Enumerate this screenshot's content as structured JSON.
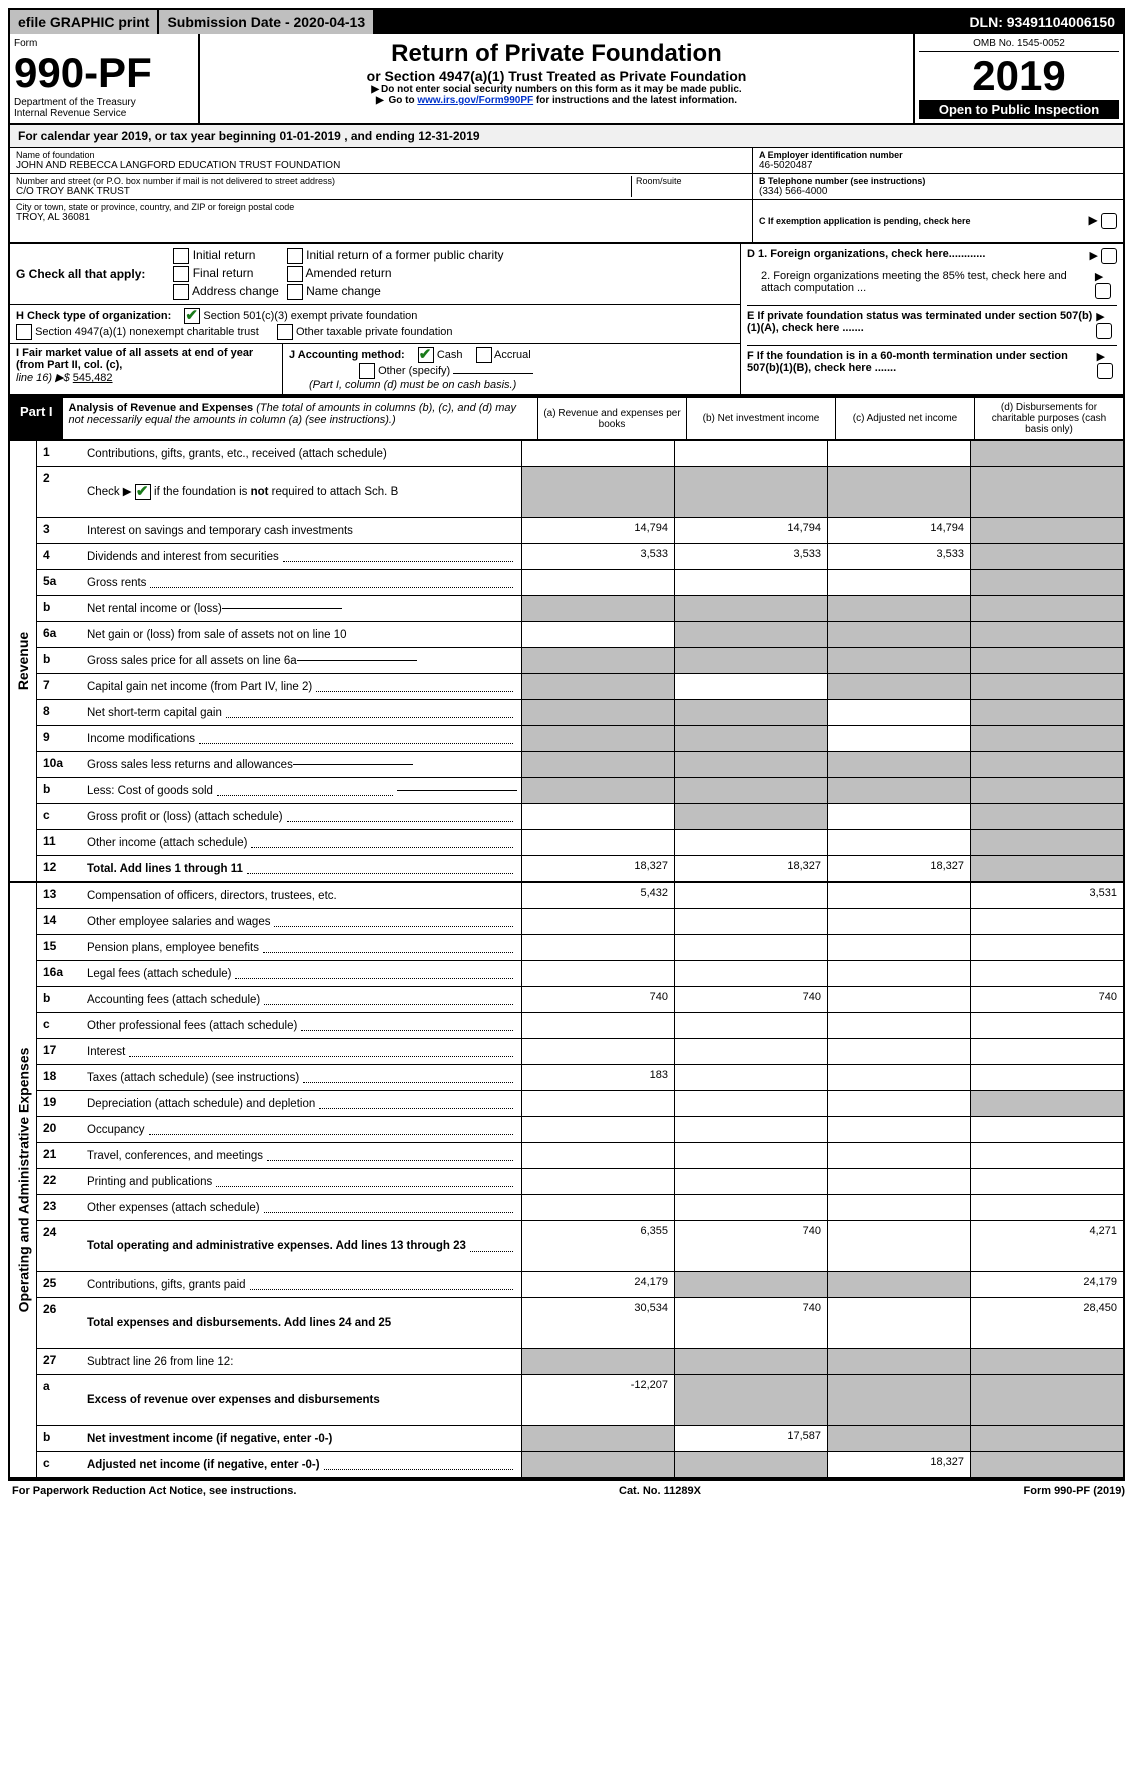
{
  "top": {
    "efile": "efile GRAPHIC print",
    "submission": "Submission Date - 2020-04-13",
    "dln": "DLN: 93491104006150"
  },
  "header": {
    "form_word": "Form",
    "form_no": "990-PF",
    "dept1": "Department of the Treasury",
    "dept2": "Internal Revenue Service",
    "title": "Return of Private Foundation",
    "subtitle": "or Section 4947(a)(1) Trust Treated as Private Foundation",
    "note1": "Do not enter social security numbers on this form as it may be made public.",
    "note2_pre": "Go to ",
    "note2_link": "www.irs.gov/Form990PF",
    "note2_post": " for instructions and the latest information.",
    "omb": "OMB No. 1545-0052",
    "year": "2019",
    "open": "Open to Public Inspection"
  },
  "cal": {
    "text_pre": "For calendar year 2019, or tax year beginning ",
    "begin": "01-01-2019",
    "mid": " , and ending ",
    "end": "12-31-2019"
  },
  "info": {
    "name_label": "Name of foundation",
    "name_val": "JOHN AND REBECCA LANGFORD EDUCATION TRUST FOUNDATION",
    "addr_label": "Number and street (or P.O. box number if mail is not delivered to street address)",
    "addr_val": "C/O TROY BANK TRUST",
    "room_label": "Room/suite",
    "city_label": "City or town, state or province, country, and ZIP or foreign postal code",
    "city_val": "TROY, AL 36081",
    "a_label": "A Employer identification number",
    "a_val": "46-5020487",
    "b_label": "B Telephone number (see instructions)",
    "b_val": "(334) 566-4000",
    "c_label": "C If exemption application is pending, check here",
    "d1": "D 1. Foreign organizations, check here............",
    "d2": "2. Foreign organizations meeting the 85% test, check here and attach computation ...",
    "e": "E  If private foundation status was terminated under section 507(b)(1)(A), check here .......",
    "f": "F  If the foundation is in a 60-month termination under section 507(b)(1)(B), check here ......."
  },
  "g": {
    "label": "G Check all that apply:",
    "initial": "Initial return",
    "initial_former": "Initial return of a former public charity",
    "final": "Final return",
    "amended": "Amended return",
    "addr_change": "Address change",
    "name_change": "Name change"
  },
  "h": {
    "label": "H Check type of organization:",
    "o1": "Section 501(c)(3) exempt private foundation",
    "o2": "Section 4947(a)(1) nonexempt charitable trust",
    "o3": "Other taxable private foundation"
  },
  "i": {
    "label": "I Fair market value of all assets at end of year (from Part II, col. (c),",
    "line16": "line 16) ▶$ ",
    "val": "545,482"
  },
  "j": {
    "label": "J Accounting method:",
    "cash": "Cash",
    "accrual": "Accrual",
    "other": "Other (specify)",
    "note": "(Part I, column (d) must be on cash basis.)"
  },
  "part1": {
    "label": "Part I",
    "title": "Analysis of Revenue and Expenses",
    "title_note": " (The total of amounts in columns (b), (c), and (d) may not necessarily equal the amounts in column (a) (see instructions).)",
    "colA": "(a)  Revenue and expenses per books",
    "colB": "(b)  Net investment income",
    "colC": "(c)  Adjusted net income",
    "colD": "(d)  Disbursements for charitable purposes (cash basis only)"
  },
  "sides": {
    "revenue": "Revenue",
    "oae": "Operating and Administrative Expenses"
  },
  "rows": [
    {
      "no": "1",
      "desc": "Contributions, gifts, grants, etc., received (attach schedule)",
      "dots": 0,
      "a": "",
      "b": "",
      "c": "",
      "d": "",
      "shadeD": 1
    },
    {
      "no": "2",
      "desc": "Check ▶ ✔ if the foundation is not required to attach Sch. B",
      "dots": 0,
      "a": "",
      "b": "",
      "c": "",
      "d": "",
      "shadeA": 1,
      "shadeB": 1,
      "shadeC": 1,
      "shadeD": 1,
      "tall": 1,
      "checkbox": 1
    },
    {
      "no": "3",
      "desc": "Interest on savings and temporary cash investments",
      "dots": 0,
      "a": "14,794",
      "b": "14,794",
      "c": "14,794",
      "d": "",
      "shadeD": 1
    },
    {
      "no": "4",
      "desc": "Dividends and interest from securities",
      "dots": 1,
      "a": "3,533",
      "b": "3,533",
      "c": "3,533",
      "d": "",
      "shadeD": 1
    },
    {
      "no": "5a",
      "desc": "Gross rents",
      "dots": 1,
      "a": "",
      "b": "",
      "c": "",
      "d": "",
      "shadeD": 1
    },
    {
      "no": "b",
      "desc": "Net rental income or (loss)",
      "dots": 0,
      "inline": 1,
      "a": "",
      "b": "",
      "c": "",
      "d": "",
      "shadeA": 1,
      "shadeB": 1,
      "shadeC": 1,
      "shadeD": 1
    },
    {
      "no": "6a",
      "desc": "Net gain or (loss) from sale of assets not on line 10",
      "dots": 0,
      "a": "",
      "b": "",
      "c": "",
      "d": "",
      "shadeB": 1,
      "shadeC": 1,
      "shadeD": 1
    },
    {
      "no": "b",
      "desc": "Gross sales price for all assets on line 6a",
      "dots": 0,
      "inline": 1,
      "a": "",
      "b": "",
      "c": "",
      "d": "",
      "shadeA": 1,
      "shadeB": 1,
      "shadeC": 1,
      "shadeD": 1
    },
    {
      "no": "7",
      "desc": "Capital gain net income (from Part IV, line 2)",
      "dots": 1,
      "a": "",
      "b": "",
      "c": "",
      "d": "",
      "shadeA": 1,
      "shadeC": 1,
      "shadeD": 1
    },
    {
      "no": "8",
      "desc": "Net short-term capital gain",
      "dots": 1,
      "a": "",
      "b": "",
      "c": "",
      "d": "",
      "shadeA": 1,
      "shadeB": 1,
      "shadeD": 1
    },
    {
      "no": "9",
      "desc": "Income modifications",
      "dots": 1,
      "a": "",
      "b": "",
      "c": "",
      "d": "",
      "shadeA": 1,
      "shadeB": 1,
      "shadeD": 1
    },
    {
      "no": "10a",
      "desc": "Gross sales less returns and allowances",
      "dots": 0,
      "inline": 1,
      "a": "",
      "b": "",
      "c": "",
      "d": "",
      "shadeA": 1,
      "shadeB": 1,
      "shadeC": 1,
      "shadeD": 1
    },
    {
      "no": "b",
      "desc": "Less: Cost of goods sold",
      "dots": 1,
      "inline": 1,
      "a": "",
      "b": "",
      "c": "",
      "d": "",
      "shadeA": 1,
      "shadeB": 1,
      "shadeC": 1,
      "shadeD": 1
    },
    {
      "no": "c",
      "desc": "Gross profit or (loss) (attach schedule)",
      "dots": 1,
      "a": "",
      "b": "",
      "c": "",
      "d": "",
      "shadeB": 1,
      "shadeD": 1
    },
    {
      "no": "11",
      "desc": "Other income (attach schedule)",
      "dots": 1,
      "a": "",
      "b": "",
      "c": "",
      "d": "",
      "shadeD": 1
    },
    {
      "no": "12",
      "desc": "Total. Add lines 1 through 11",
      "dots": 1,
      "bold": 1,
      "a": "18,327",
      "b": "18,327",
      "c": "18,327",
      "d": "",
      "shadeD": 1
    }
  ],
  "rows2": [
    {
      "no": "13",
      "desc": "Compensation of officers, directors, trustees, etc.",
      "dots": 0,
      "a": "5,432",
      "b": "",
      "c": "",
      "d": "3,531"
    },
    {
      "no": "14",
      "desc": "Other employee salaries and wages",
      "dots": 1,
      "a": "",
      "b": "",
      "c": "",
      "d": ""
    },
    {
      "no": "15",
      "desc": "Pension plans, employee benefits",
      "dots": 1,
      "a": "",
      "b": "",
      "c": "",
      "d": ""
    },
    {
      "no": "16a",
      "desc": "Legal fees (attach schedule)",
      "dots": 1,
      "a": "",
      "b": "",
      "c": "",
      "d": ""
    },
    {
      "no": "b",
      "desc": "Accounting fees (attach schedule)",
      "dots": 1,
      "a": "740",
      "b": "740",
      "c": "",
      "d": "740"
    },
    {
      "no": "c",
      "desc": "Other professional fees (attach schedule)",
      "dots": 1,
      "a": "",
      "b": "",
      "c": "",
      "d": ""
    },
    {
      "no": "17",
      "desc": "Interest",
      "dots": 1,
      "a": "",
      "b": "",
      "c": "",
      "d": ""
    },
    {
      "no": "18",
      "desc": "Taxes (attach schedule) (see instructions)",
      "dots": 1,
      "a": "183",
      "b": "",
      "c": "",
      "d": ""
    },
    {
      "no": "19",
      "desc": "Depreciation (attach schedule) and depletion",
      "dots": 1,
      "a": "",
      "b": "",
      "c": "",
      "d": "",
      "shadeD": 1
    },
    {
      "no": "20",
      "desc": "Occupancy",
      "dots": 1,
      "a": "",
      "b": "",
      "c": "",
      "d": ""
    },
    {
      "no": "21",
      "desc": "Travel, conferences, and meetings",
      "dots": 1,
      "a": "",
      "b": "",
      "c": "",
      "d": ""
    },
    {
      "no": "22",
      "desc": "Printing and publications",
      "dots": 1,
      "a": "",
      "b": "",
      "c": "",
      "d": ""
    },
    {
      "no": "23",
      "desc": "Other expenses (attach schedule)",
      "dots": 1,
      "a": "",
      "b": "",
      "c": "",
      "d": ""
    },
    {
      "no": "24",
      "desc": "Total operating and administrative expenses. Add lines 13 through 23",
      "dots": 1,
      "bold": 1,
      "tall": 1,
      "a": "6,355",
      "b": "740",
      "c": "",
      "d": "4,271"
    },
    {
      "no": "25",
      "desc": "Contributions, gifts, grants paid",
      "dots": 1,
      "a": "24,179",
      "b": "",
      "c": "",
      "d": "24,179",
      "shadeB": 1,
      "shadeC": 1
    },
    {
      "no": "26",
      "desc": "Total expenses and disbursements. Add lines 24 and 25",
      "dots": 0,
      "bold": 1,
      "tall": 1,
      "a": "30,534",
      "b": "740",
      "c": "",
      "d": "28,450"
    },
    {
      "no": "27",
      "desc": "Subtract line 26 from line 12:",
      "dots": 0,
      "a": "",
      "b": "",
      "c": "",
      "d": "",
      "shadeA": 1,
      "shadeB": 1,
      "shadeC": 1,
      "shadeD": 1
    },
    {
      "no": "a",
      "desc": "Excess of revenue over expenses and disbursements",
      "dots": 0,
      "bold": 1,
      "tall": 1,
      "a": "-12,207",
      "b": "",
      "c": "",
      "d": "",
      "shadeB": 1,
      "shadeC": 1,
      "shadeD": 1
    },
    {
      "no": "b",
      "desc": "Net investment income (if negative, enter -0-)",
      "dots": 0,
      "bold": 1,
      "a": "",
      "b": "17,587",
      "c": "",
      "d": "",
      "shadeA": 1,
      "shadeC": 1,
      "shadeD": 1
    },
    {
      "no": "c",
      "desc": "Adjusted net income (if negative, enter -0-)",
      "dots": 1,
      "bold": 1,
      "a": "",
      "b": "",
      "c": "18,327",
      "d": "",
      "shadeA": 1,
      "shadeB": 1,
      "shadeD": 1
    }
  ],
  "footer": {
    "left": "For Paperwork Reduction Act Notice, see instructions.",
    "mid": "Cat. No. 11289X",
    "right": "Form 990-PF (2019)"
  }
}
